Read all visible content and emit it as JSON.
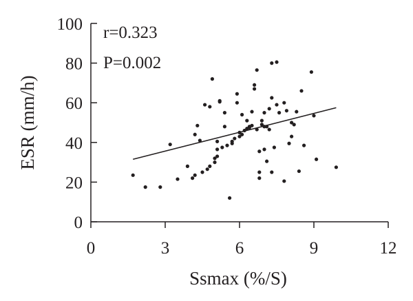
{
  "chart_data": {
    "type": "scatter",
    "title": "",
    "xlabel": "Ssmax (%/S)",
    "ylabel": "ESR (mm/h)",
    "xlim": [
      0,
      12
    ],
    "ylim": [
      0,
      100
    ],
    "x_ticks": [
      0,
      3,
      6,
      9,
      12
    ],
    "y_ticks": [
      0,
      20,
      40,
      60,
      80,
      100
    ],
    "grid": false,
    "annotations": [
      "r=0.323",
      "P=0.002"
    ],
    "series": [
      {
        "points": [
          [
            1.7,
            23.5
          ],
          [
            2.2,
            17.5
          ],
          [
            2.8,
            17.5
          ],
          [
            3.2,
            39
          ],
          [
            3.5,
            21.5
          ],
          [
            3.9,
            28
          ],
          [
            4.1,
            22
          ],
          [
            4.2,
            23.5
          ],
          [
            4.2,
            44
          ],
          [
            4.3,
            48.5
          ],
          [
            4.4,
            41
          ],
          [
            4.5,
            25
          ],
          [
            4.6,
            59
          ],
          [
            4.7,
            26.5
          ],
          [
            4.8,
            58
          ],
          [
            4.8,
            28
          ],
          [
            4.9,
            72
          ],
          [
            5.0,
            30
          ],
          [
            5.0,
            32
          ],
          [
            5.1,
            33
          ],
          [
            5.1,
            36.5
          ],
          [
            5.1,
            40.5
          ],
          [
            5.2,
            61
          ],
          [
            5.2,
            60.5
          ],
          [
            5.3,
            37.5
          ],
          [
            5.4,
            55
          ],
          [
            5.4,
            48
          ],
          [
            5.5,
            38.5
          ],
          [
            5.6,
            12
          ],
          [
            5.7,
            39.5
          ],
          [
            5.7,
            40.5
          ],
          [
            5.8,
            42
          ],
          [
            5.9,
            64.5
          ],
          [
            5.9,
            60
          ],
          [
            6.0,
            43
          ],
          [
            6.0,
            45
          ],
          [
            6.1,
            54
          ],
          [
            6.1,
            44
          ],
          [
            6.2,
            46
          ],
          [
            6.3,
            47
          ],
          [
            6.3,
            51
          ],
          [
            6.4,
            48
          ],
          [
            6.4,
            47.5
          ],
          [
            6.5,
            55.5
          ],
          [
            6.5,
            48.5
          ],
          [
            6.6,
            69
          ],
          [
            6.6,
            67
          ],
          [
            6.7,
            76.5
          ],
          [
            6.7,
            46.5
          ],
          [
            6.8,
            35.5
          ],
          [
            6.8,
            25
          ],
          [
            6.8,
            22
          ],
          [
            6.9,
            51
          ],
          [
            6.9,
            49
          ],
          [
            7.0,
            48
          ],
          [
            7.0,
            55
          ],
          [
            7.0,
            36.5
          ],
          [
            7.1,
            48
          ],
          [
            7.1,
            30.5
          ],
          [
            7.2,
            46.5
          ],
          [
            7.2,
            57
          ],
          [
            7.3,
            62.5
          ],
          [
            7.3,
            80
          ],
          [
            7.3,
            25
          ],
          [
            7.4,
            37.5
          ],
          [
            7.5,
            59
          ],
          [
            7.5,
            80.5
          ],
          [
            7.6,
            55
          ],
          [
            7.8,
            20.5
          ],
          [
            7.8,
            60
          ],
          [
            7.9,
            56
          ],
          [
            8.0,
            39.5
          ],
          [
            8.1,
            43
          ],
          [
            8.1,
            50
          ],
          [
            8.2,
            49
          ],
          [
            8.3,
            55.5
          ],
          [
            8.4,
            25.5
          ],
          [
            8.5,
            66
          ],
          [
            8.6,
            38.5
          ],
          [
            8.9,
            75.5
          ],
          [
            9.0,
            53.5
          ],
          [
            9.1,
            31.5
          ],
          [
            9.9,
            27.5
          ]
        ]
      }
    ],
    "trendline": {
      "x": [
        1.7,
        9.9
      ],
      "y": [
        31.5,
        57.5
      ]
    }
  }
}
